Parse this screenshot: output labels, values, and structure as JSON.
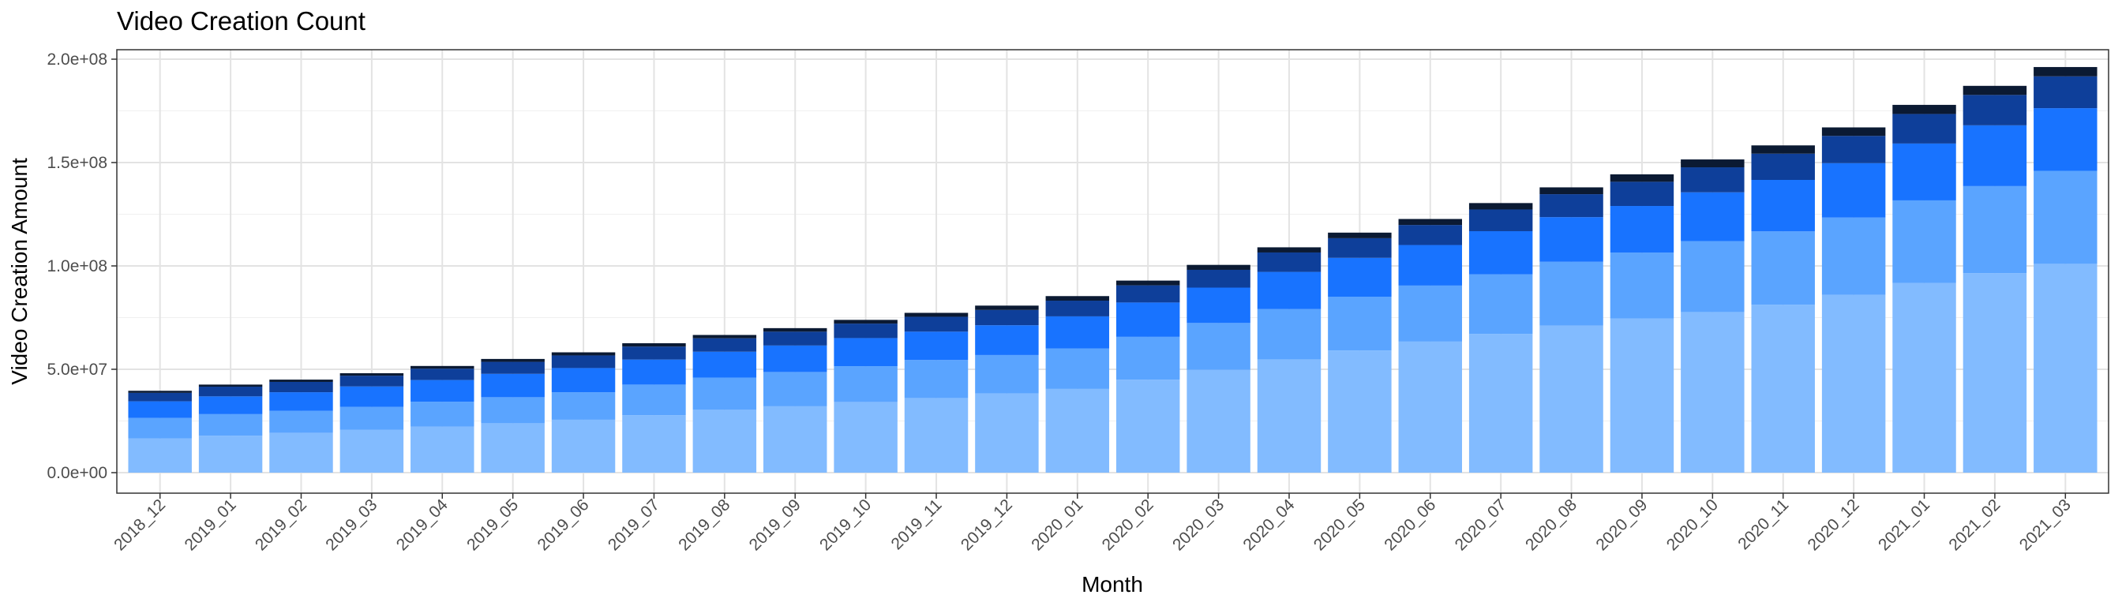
{
  "chart_data": {
    "type": "bar",
    "stacked": true,
    "title": "Video Creation Count",
    "xlabel": "Month",
    "ylabel": "Video Creation Amount",
    "ylim": [
      0,
      200000000
    ],
    "y_ticks": [
      0,
      50000000,
      100000000,
      150000000,
      200000000
    ],
    "y_tick_labels": [
      "0.0e+00",
      "5.0e+07",
      "1.0e+08",
      "1.5e+08",
      "2.0e+08"
    ],
    "grid": true,
    "legend": "none",
    "categories": [
      "2018_12",
      "2019_01",
      "2019_02",
      "2019_03",
      "2019_04",
      "2019_05",
      "2019_06",
      "2019_07",
      "2019_08",
      "2019_09",
      "2019_10",
      "2019_11",
      "2019_12",
      "2020_01",
      "2020_02",
      "2020_03",
      "2020_04",
      "2020_05",
      "2020_06",
      "2020_07",
      "2020_08",
      "2020_09",
      "2020_10",
      "2020_11",
      "2020_12",
      "2021_01",
      "2021_02",
      "2021_03"
    ],
    "series": [
      {
        "color": "#82bbff",
        "values": [
          16500000,
          17900000,
          19300000,
          20800000,
          22300000,
          23900000,
          25600000,
          27800000,
          30400000,
          32100000,
          34200000,
          36100000,
          38300000,
          40500000,
          45000000,
          49700000,
          54800000,
          59100000,
          63400000,
          67100000,
          71200000,
          74600000,
          77700000,
          81200000,
          86000000,
          91700000,
          96500000,
          101000000
        ]
      },
      {
        "color": "#5aa4ff",
        "values": [
          10000000,
          10400000,
          10600000,
          11000000,
          12000000,
          12600000,
          13300000,
          14800000,
          15600000,
          16600000,
          17300000,
          18400000,
          18600000,
          19600000,
          20700000,
          22700000,
          24300000,
          26000000,
          27100000,
          28800000,
          30800000,
          31800000,
          34300000,
          35500000,
          37400000,
          40000000,
          42100000,
          45000000
        ]
      },
      {
        "color": "#1873ff",
        "values": [
          8000000,
          8600000,
          9000000,
          9900000,
          10500000,
          11300000,
          11700000,
          12100000,
          12500000,
          12800000,
          13600000,
          13700000,
          14400000,
          15500000,
          16600000,
          17100000,
          18000000,
          18800000,
          19600000,
          20900000,
          21600000,
          22600000,
          23600000,
          24900000,
          26300000,
          27500000,
          29400000,
          30300000
        ]
      },
      {
        "color": "#0e3f9a",
        "values": [
          4100000,
          4700000,
          5000000,
          5200000,
          5500000,
          5800000,
          6100000,
          6300000,
          6500000,
          6700000,
          7000000,
          7200000,
          7400000,
          7600000,
          8300000,
          8600000,
          9400000,
          9500000,
          9700000,
          10500000,
          11100000,
          11700000,
          12100000,
          12700000,
          13200000,
          14300000,
          14700000,
          15400000
        ]
      },
      {
        "color": "#0b1a33",
        "values": [
          1000000,
          1000000,
          1100000,
          1200000,
          1300000,
          1400000,
          1500000,
          1600000,
          1600000,
          1700000,
          1800000,
          1900000,
          2100000,
          2200000,
          2300000,
          2400000,
          2500000,
          2700000,
          2900000,
          3100000,
          3300000,
          3600000,
          3800000,
          4000000,
          4100000,
          4400000,
          4400000,
          4500000
        ]
      }
    ]
  }
}
